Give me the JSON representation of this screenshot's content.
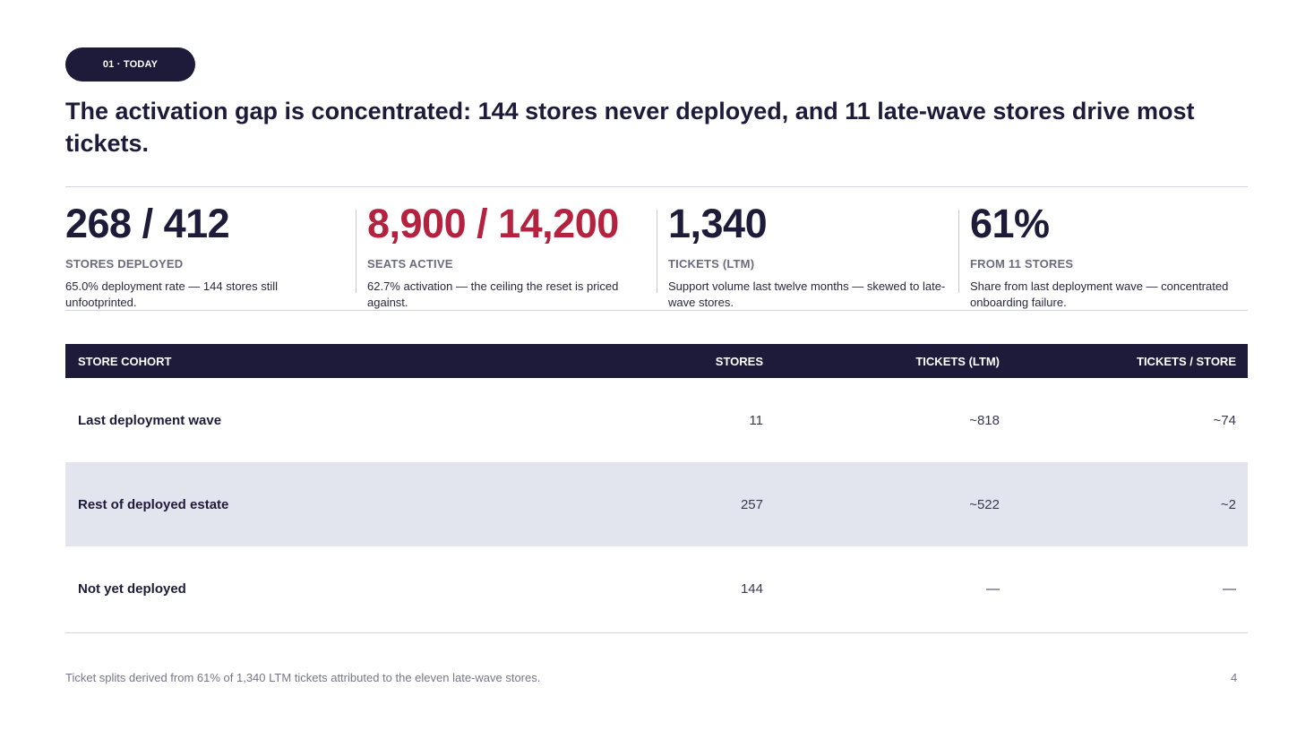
{
  "section_pill": "01 · TODAY",
  "headline": "The activation gap is concentrated: 144 stores never deployed, and 11 late-wave stores drive most tickets.",
  "kpis": [
    {
      "value": "268 / 412",
      "label": "STORES DEPLOYED",
      "description": "65.0% deployment rate — 144 stores still unfootprinted.",
      "color": "#1e1b3a"
    },
    {
      "value": "8,900 / 14,200",
      "label": "SEATS ACTIVE",
      "description": "62.7% activation — the ceiling the reset is priced against.",
      "color": "#b5223f"
    },
    {
      "value": "1,340",
      "label": "TICKETS (LTM)",
      "description": "Support volume last twelve months — skewed to late-wave stores.",
      "color": "#1e1b3a"
    },
    {
      "value": "61%",
      "label": "FROM 11 STORES",
      "description": "Share from last deployment wave — concentrated onboarding failure.",
      "color": "#1e1b3a"
    }
  ],
  "table": {
    "headers": [
      "STORE COHORT",
      "STORES",
      "TICKETS (LTM)",
      "TICKETS / STORE"
    ],
    "rows": [
      {
        "cohort": "Last deployment wave",
        "stores": "11",
        "tickets": "~818",
        "per_store": "~74"
      },
      {
        "cohort": "Rest of deployed estate",
        "stores": "257",
        "tickets": "~522",
        "per_store": "~2"
      },
      {
        "cohort": "Not yet deployed",
        "stores": "144",
        "tickets": "—",
        "per_store": "—"
      }
    ]
  },
  "footnote": "Ticket splits derived from 61% of 1,340 LTM tickets attributed to the eleven late-wave stores.",
  "page_number": "4"
}
